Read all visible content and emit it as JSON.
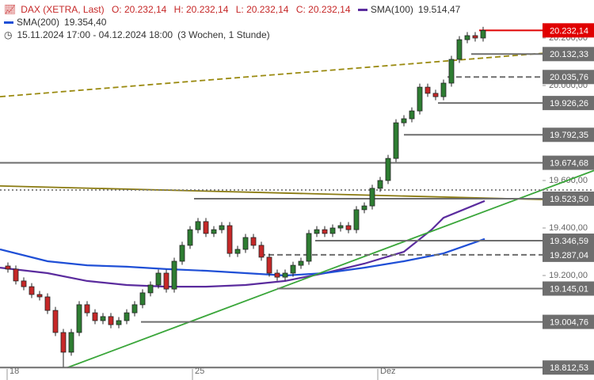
{
  "chart_data": {
    "type": "candlestick",
    "title": "DAX (XETRA, Last)",
    "ohlc_labels": [
      "O: 20.232,14",
      "H: 20.232,14",
      "L: 20.232,14",
      "C: 20.232,14"
    ],
    "subtitle": "15.11.2024 17:00 - 04.12.2024 18:00",
    "interval": "(3 Wochen, 1 Stunde)",
    "xlim": [
      -1,
      74
    ],
    "xticks": [
      {
        "value": -0.1,
        "label": "18"
      },
      {
        "value": 23.3,
        "label": "25"
      },
      {
        "value": 46.7,
        "label": "Dez"
      }
    ],
    "ylim": [
      18760,
      20360
    ],
    "yticks": [
      {
        "value": 19200,
        "label": "19.200,00"
      },
      {
        "value": 19400,
        "label": "19.400,00"
      },
      {
        "value": 19600,
        "label": "19.600,00"
      },
      {
        "value": 20000,
        "label": "20.000,00"
      },
      {
        "value": 20200,
        "label": "20.200,00"
      }
    ],
    "up_color": "#2e7d32",
    "down_color": "#c62828",
    "candles": {
      "open": [
        19240,
        19227,
        19177,
        19153,
        19120,
        19110,
        19053,
        18960,
        18877,
        18960,
        19077,
        19043,
        19010,
        19027,
        18993,
        19010,
        19043,
        19077,
        19127,
        19160,
        19210,
        19143,
        19260,
        19327,
        19393,
        19427,
        19377,
        19393,
        19410,
        19293,
        19310,
        19360,
        19327,
        19277,
        19210,
        19193,
        19210,
        19243,
        19260,
        19377,
        19393,
        19377,
        19400,
        19410,
        19393,
        19477,
        19493,
        19567,
        19600,
        19693,
        19843,
        19860,
        19893,
        19993,
        19967,
        19953,
        20010,
        20110,
        20193,
        20210,
        20200
      ],
      "high": [
        19255,
        19242,
        19192,
        19168,
        19135,
        19125,
        19068,
        18975,
        18975,
        19092,
        19092,
        19058,
        19042,
        19042,
        19025,
        19058,
        19092,
        19142,
        19175,
        19225,
        19225,
        19275,
        19342,
        19408,
        19442,
        19442,
        19408,
        19425,
        19425,
        19325,
        19375,
        19375,
        19342,
        19292,
        19225,
        19225,
        19258,
        19275,
        19392,
        19408,
        19408,
        19415,
        19425,
        19425,
        19492,
        19508,
        19582,
        19615,
        19708,
        19858,
        19875,
        19908,
        20008,
        20008,
        19982,
        20025,
        20125,
        20208,
        20225,
        20225,
        20247
      ],
      "low": [
        19212,
        19162,
        19138,
        19105,
        19095,
        19038,
        18945,
        18815,
        18862,
        18945,
        19028,
        18995,
        18995,
        18978,
        18978,
        18995,
        19028,
        19062,
        19112,
        19145,
        19128,
        19128,
        19245,
        19312,
        19378,
        19362,
        19362,
        19378,
        19278,
        19278,
        19295,
        19312,
        19262,
        19195,
        19178,
        19178,
        19195,
        19228,
        19245,
        19362,
        19362,
        19362,
        19385,
        19378,
        19378,
        19462,
        19478,
        19552,
        19585,
        19678,
        19828,
        19845,
        19878,
        19952,
        19938,
        19938,
        19995,
        20095,
        20178,
        20185,
        20185
      ],
      "close": [
        19227,
        19177,
        19153,
        19120,
        19110,
        19053,
        18960,
        18877,
        18960,
        19077,
        19043,
        19010,
        19027,
        18993,
        19010,
        19043,
        19077,
        19127,
        19160,
        19210,
        19143,
        19260,
        19327,
        19393,
        19427,
        19377,
        19393,
        19410,
        19293,
        19310,
        19360,
        19327,
        19277,
        19210,
        19193,
        19210,
        19243,
        19260,
        19377,
        19393,
        19377,
        19400,
        19410,
        19393,
        19477,
        19493,
        19567,
        19600,
        19693,
        19843,
        19860,
        19893,
        19993,
        19967,
        19953,
        20010,
        20110,
        20193,
        20210,
        20200,
        20232
      ]
    },
    "lines": [
      {
        "name": "SMA(100)",
        "value_label": "19.514,47",
        "color": "#5b2c9e",
        "style": "solid",
        "x": [
          -1,
          5,
          10,
          15,
          20,
          25,
          30,
          35,
          40,
          45,
          50,
          53.5,
          55,
          60.2
        ],
        "values": [
          19233,
          19210,
          19177,
          19160,
          19153,
          19153,
          19160,
          19177,
          19210,
          19250,
          19300,
          19393,
          19443,
          19514
        ]
      },
      {
        "name": "SMA(200)",
        "value_label": "19.354,40",
        "color": "#1f4fd6",
        "style": "solid",
        "x": [
          -1,
          5,
          10,
          15,
          20,
          25,
          30,
          35,
          40,
          45,
          50,
          55,
          60.2
        ],
        "values": [
          19310,
          19260,
          19243,
          19237,
          19227,
          19220,
          19210,
          19200,
          19210,
          19233,
          19260,
          19293,
          19354
        ]
      },
      {
        "color": "#3aa63a",
        "style": "solid",
        "x": [
          7.5,
          74
        ],
        "values": [
          18812,
          19642
        ]
      },
      {
        "color": "#9a8a10",
        "style": "dashed",
        "x": [
          -1,
          74
        ],
        "values": [
          19953,
          20153
        ]
      },
      {
        "color": "#8a7a10",
        "style": "solid",
        "x": [
          -1,
          67.5
        ],
        "values": [
          19577,
          19520
        ]
      },
      {
        "color": "#777777",
        "style": "dotted",
        "x": [
          -1,
          74
        ],
        "values": [
          19560,
          19560
        ]
      }
    ],
    "levels": [
      {
        "value": 20232.14,
        "label": "20.232,14",
        "x_start": 59.5,
        "color": "#e00000",
        "style": "solid"
      },
      {
        "value": 20132.33,
        "label": "20.132,33",
        "x_start": 58.5,
        "color": "#6e6e6e",
        "style": "solid"
      },
      {
        "value": 20035.76,
        "label": "20.035,76",
        "x_start": 55.5,
        "color": "#6e6e6e",
        "style": "dashed"
      },
      {
        "value": 19926.26,
        "label": "19.926,26",
        "x_start": 54.3,
        "color": "#6e6e6e",
        "style": "solid"
      },
      {
        "value": 19792.35,
        "label": "19.792,35",
        "x_start": 50,
        "color": "#6e6e6e",
        "style": "solid"
      },
      {
        "value": 19674.68,
        "label": "19.674,68",
        "x_start": -1,
        "color": "#6e6e6e",
        "style": "solid"
      },
      {
        "value": 19523.5,
        "label": "19.523,50",
        "x_start": 23.5,
        "color": "#6e6e6e",
        "style": "solid"
      },
      {
        "value": 19346.59,
        "label": "19.346,59",
        "x_start": 38.8,
        "color": "#6e6e6e",
        "style": "solid"
      },
      {
        "value": 19287.04,
        "label": "19.287,04",
        "x_start": 31.8,
        "color": "#6e6e6e",
        "style": "dashed"
      },
      {
        "value": 19145.01,
        "label": "19.145,01",
        "x_start": 34,
        "color": "#6e6e6e",
        "style": "solid"
      },
      {
        "value": 19004.76,
        "label": "19.004,76",
        "x_start": 16.8,
        "color": "#6e6e6e",
        "style": "solid"
      },
      {
        "value": 18812.53,
        "label": "18.812,53",
        "x_start": -1,
        "color": "#6e6e6e",
        "style": "solid"
      }
    ]
  }
}
